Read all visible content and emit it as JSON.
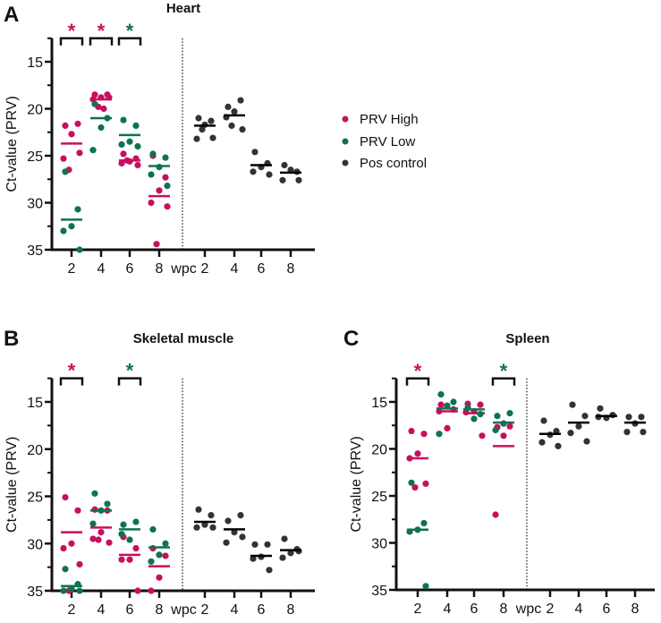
{
  "colors": {
    "high": "#c80f5f",
    "low": "#0d7350",
    "pos": "#333333"
  },
  "legend": [
    {
      "key": "high",
      "label": "PRV High"
    },
    {
      "key": "low",
      "label": "PRV Low"
    },
    {
      "key": "pos",
      "label": "Pos control"
    }
  ],
  "chart_data": [
    {
      "type": "scatter",
      "letter": "A",
      "title": "Heart",
      "ylabel": "Ct-value (PRV)",
      "ylim": [
        12.5,
        35
      ],
      "yticks": [
        "15",
        "20",
        "25",
        "30",
        "35"
      ],
      "y_inverted": true,
      "xticks": [
        "2",
        "4",
        "6",
        "8",
        "2",
        "4",
        "6",
        "8"
      ],
      "x_unit_label": "wpc",
      "significance": [
        {
          "slot": 0,
          "mark": "*",
          "color": "high"
        },
        {
          "slot": 1,
          "mark": "*",
          "color": "high"
        },
        {
          "slot": 2,
          "mark": "*",
          "color": "low"
        }
      ],
      "groups": [
        {
          "slot": 0,
          "series": "high",
          "values": [
            21.8,
            21.6,
            22.7,
            25.3,
            24.7,
            26.5
          ],
          "median": 23.7
        },
        {
          "slot": 0,
          "series": "low",
          "values": [
            26.7,
            30.7,
            32.5,
            33.0,
            35.0
          ],
          "median": 31.8
        },
        {
          "slot": 1,
          "series": "high",
          "values": [
            18.5,
            18.5,
            18.8,
            19.0,
            18.8,
            19.8,
            20.0
          ],
          "median": 19.0
        },
        {
          "slot": 1,
          "series": "low",
          "values": [
            19.5,
            21.0,
            22.0,
            24.4
          ],
          "median": 21.0
        },
        {
          "slot": 2,
          "series": "high",
          "values": [
            24.8,
            25.3,
            25.6,
            25.8,
            26.0,
            25.5
          ],
          "median": 25.5
        },
        {
          "slot": 2,
          "series": "low",
          "values": [
            21.2,
            21.8,
            23.5,
            23.8,
            24.0
          ],
          "median": 22.8
        },
        {
          "slot": 3,
          "series": "high",
          "values": [
            25.0,
            27.3,
            28.7,
            30.0,
            30.4,
            34.4
          ],
          "median": 29.3
        },
        {
          "slot": 3,
          "series": "low",
          "values": [
            24.8,
            25.2,
            26.2,
            27.0,
            28.2
          ],
          "median": 26.1
        },
        {
          "slot": 4,
          "series": "pos",
          "values": [
            21.0,
            21.3,
            21.7,
            23.2,
            23.1,
            22.2
          ],
          "median": 21.8
        },
        {
          "slot": 5,
          "series": "pos",
          "values": [
            19.8,
            19.1,
            20.3,
            20.9,
            22.2,
            21.8
          ],
          "median": 20.7
        },
        {
          "slot": 6,
          "series": "pos",
          "values": [
            24.6,
            25.8,
            26.2,
            26.7,
            27.0
          ],
          "median": 26.0
        },
        {
          "slot": 7,
          "series": "pos",
          "values": [
            26.0,
            26.7,
            26.5,
            27.6,
            27.6
          ],
          "median": 26.8
        }
      ]
    },
    {
      "type": "scatter",
      "letter": "B",
      "title": "Skeletal muscle",
      "ylabel": "Ct-value (PRV)",
      "ylim": [
        12.5,
        35
      ],
      "yticks": [
        "15",
        "20",
        "25",
        "30",
        "35"
      ],
      "y_inverted": true,
      "xticks": [
        "2",
        "4",
        "6",
        "8",
        "2",
        "4",
        "6",
        "8"
      ],
      "x_unit_label": "wpc",
      "significance": [
        {
          "slot": 0,
          "mark": "*",
          "color": "high"
        },
        {
          "slot": 2,
          "mark": "*",
          "color": "low"
        }
      ],
      "groups": [
        {
          "slot": 0,
          "series": "high",
          "values": [
            25.1,
            26.5,
            30.0,
            30.5,
            32.2,
            35.0
          ],
          "median": 28.8
        },
        {
          "slot": 0,
          "series": "low",
          "values": [
            32.7,
            34.3,
            34.8,
            35.0,
            35.0
          ],
          "median": 34.5
        },
        {
          "slot": 1,
          "series": "high",
          "values": [
            26.4,
            26.5,
            28.8,
            29.5,
            29.9,
            29.6
          ],
          "median": 28.3
        },
        {
          "slot": 1,
          "series": "low",
          "values": [
            24.7,
            25.8,
            26.5,
            27.9
          ],
          "median": 26.5
        },
        {
          "slot": 2,
          "series": "high",
          "values": [
            29.3,
            30.5,
            31.7,
            31.7,
            35.0
          ],
          "median": 31.2
        },
        {
          "slot": 2,
          "series": "low",
          "values": [
            28.0,
            27.7,
            29.6,
            29.0
          ],
          "median": 28.5
        },
        {
          "slot": 3,
          "series": "high",
          "values": [
            30.5,
            31.3,
            33.6,
            35.0
          ],
          "median": 32.4
        },
        {
          "slot": 3,
          "series": "low",
          "values": [
            28.5,
            30.0,
            31.2,
            31.9
          ],
          "median": 30.4
        },
        {
          "slot": 4,
          "series": "pos",
          "values": [
            26.4,
            27.0,
            28.0,
            28.3,
            28.3
          ],
          "median": 27.7
        },
        {
          "slot": 5,
          "series": "pos",
          "values": [
            27.6,
            27.0,
            28.8,
            29.9,
            29.3
          ],
          "median": 28.5
        },
        {
          "slot": 6,
          "series": "pos",
          "values": [
            30.1,
            30.1,
            31.4,
            31.6,
            32.8
          ],
          "median": 31.3
        },
        {
          "slot": 7,
          "series": "pos",
          "values": [
            29.5,
            30.6,
            31.0,
            31.5,
            30.8
          ],
          "median": 30.7
        }
      ]
    },
    {
      "type": "scatter",
      "letter": "C",
      "title": "Spleen",
      "ylabel": "Ct-value (PRV)",
      "ylim": [
        12.5,
        35
      ],
      "yticks": [
        "15",
        "20",
        "25",
        "30",
        "35"
      ],
      "y_inverted": true,
      "xticks": [
        "2",
        "4",
        "6",
        "8",
        "2",
        "4",
        "6",
        "8"
      ],
      "x_unit_label": "wpc",
      "significance": [
        {
          "slot": 0,
          "mark": "*",
          "color": "high"
        },
        {
          "slot": 3,
          "mark": "*",
          "color": "low"
        }
      ],
      "groups": [
        {
          "slot": 0,
          "series": "high",
          "values": [
            18.1,
            18.4,
            20.5,
            21.0,
            23.7,
            24.1
          ],
          "median": 21.0
        },
        {
          "slot": 0,
          "series": "low",
          "values": [
            23.6,
            27.9,
            28.6,
            28.8,
            34.6
          ],
          "median": 28.6
        },
        {
          "slot": 1,
          "series": "high",
          "values": [
            15.3,
            15.8,
            17.8,
            16.0
          ],
          "median": 16.0
        },
        {
          "slot": 1,
          "series": "low",
          "values": [
            14.2,
            15.0,
            15.4,
            18.4
          ],
          "median": 15.7
        },
        {
          "slot": 2,
          "series": "high",
          "values": [
            15.2,
            15.3,
            16.0,
            16.1,
            18.6
          ],
          "median": 16.2
        },
        {
          "slot": 2,
          "series": "low",
          "values": [
            15.6,
            16.3,
            16.8
          ],
          "median": 15.8
        },
        {
          "slot": 3,
          "series": "high",
          "values": [
            17.7,
            17.6,
            18.6,
            27.0
          ],
          "median": 19.7
        },
        {
          "slot": 3,
          "series": "low",
          "values": [
            16.5,
            16.2,
            17.3,
            18.0
          ],
          "median": 17.2
        },
        {
          "slot": 4,
          "series": "pos",
          "values": [
            17.0,
            18.1,
            18.5,
            19.3,
            19.7
          ],
          "median": 18.4
        },
        {
          "slot": 5,
          "series": "pos",
          "values": [
            15.3,
            16.5,
            17.6,
            18.3,
            19.2
          ],
          "median": 17.2
        },
        {
          "slot": 6,
          "series": "pos",
          "values": [
            15.7,
            16.4,
            16.7,
            16.6
          ],
          "median": 16.5
        },
        {
          "slot": 7,
          "series": "pos",
          "values": [
            16.6,
            16.6,
            17.3,
            18.2,
            18.2
          ],
          "median": 17.2
        }
      ]
    }
  ]
}
